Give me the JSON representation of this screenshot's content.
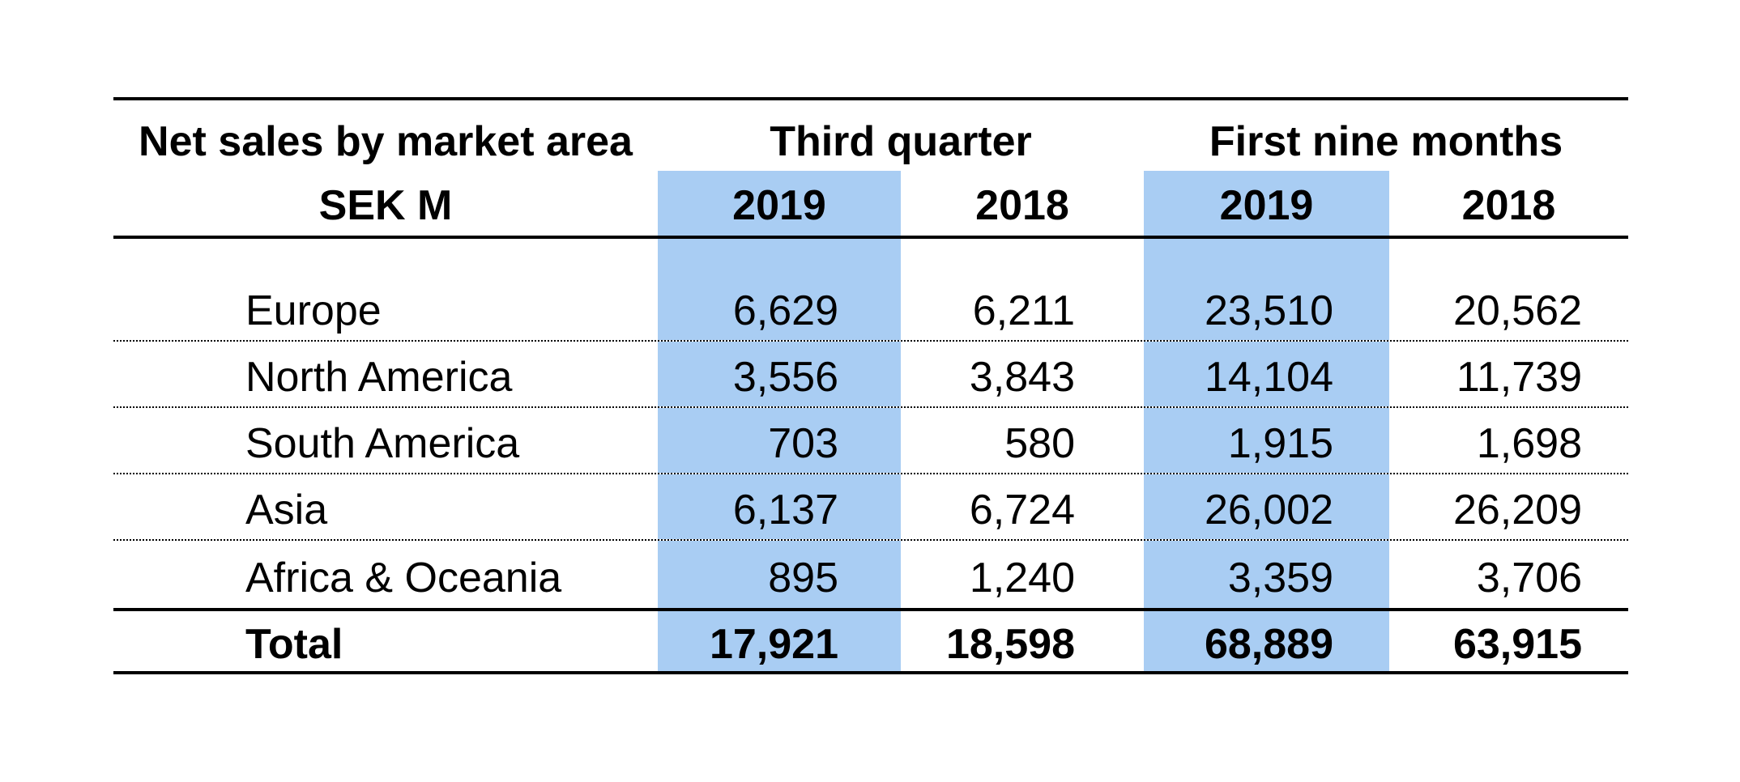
{
  "table": {
    "title": "Net sales by market area",
    "unit_label": "SEK M",
    "col_groups": [
      {
        "label": "Third quarter",
        "years": [
          "2019",
          "2018"
        ]
      },
      {
        "label": "First nine months",
        "years": [
          "2019",
          "2018"
        ]
      }
    ],
    "rows": [
      {
        "label": "Europe",
        "q3_2019": "6,629",
        "q3_2018": "6,211",
        "ytd_2019": "23,510",
        "ytd_2018": "20,562"
      },
      {
        "label": "North America",
        "q3_2019": "3,556",
        "q3_2018": "3,843",
        "ytd_2019": "14,104",
        "ytd_2018": "11,739"
      },
      {
        "label": "South America",
        "q3_2019": "703",
        "q3_2018": "580",
        "ytd_2019": "1,915",
        "ytd_2018": "1,698"
      },
      {
        "label": "Asia",
        "q3_2019": "6,137",
        "q3_2018": "6,724",
        "ytd_2019": "26,002",
        "ytd_2018": "26,209"
      },
      {
        "label": "Africa & Oceania",
        "q3_2019": "895",
        "q3_2018": "1,240",
        "ytd_2019": "3,359",
        "ytd_2018": "3,706"
      }
    ],
    "total": {
      "label": "Total",
      "q3_2019": "17,921",
      "q3_2018": "18,598",
      "ytd_2019": "68,889",
      "ytd_2018": "63,915"
    }
  },
  "colors": {
    "highlight_2019": "#a9cdf3",
    "rule_line": "#000000",
    "text": "#000000",
    "background": "#ffffff"
  },
  "chart_data": {
    "type": "table",
    "title": "Net sales by market area (SEK M)",
    "categories": [
      "Europe",
      "North America",
      "South America",
      "Asia",
      "Africa & Oceania",
      "Total"
    ],
    "series": [
      {
        "name": "Third quarter 2019",
        "values": [
          6629,
          3556,
          703,
          6137,
          895,
          17921
        ]
      },
      {
        "name": "Third quarter 2018",
        "values": [
          6211,
          3843,
          580,
          6724,
          1240,
          18598
        ]
      },
      {
        "name": "First nine months 2019",
        "values": [
          23510,
          14104,
          1915,
          26002,
          3359,
          68889
        ]
      },
      {
        "name": "First nine months 2018",
        "values": [
          20562,
          11739,
          1698,
          26209,
          3706,
          63915
        ]
      }
    ],
    "layout_hints": {
      "highlighted_columns": [
        "Third quarter 2019",
        "First nine months 2019"
      ],
      "row_separators": "dotted",
      "header_and_total_rules": "solid"
    }
  }
}
